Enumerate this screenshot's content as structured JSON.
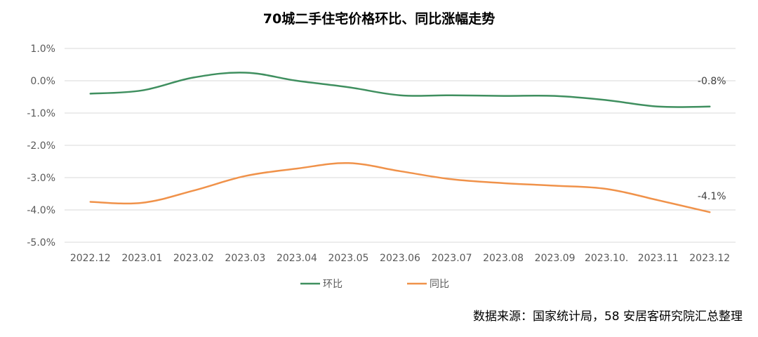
{
  "chart_data": {
    "type": "line",
    "title": "70城二手住宅价格环比、同比涨幅走势",
    "categories": [
      "2022.12",
      "2023.01",
      "2023.02",
      "2023.03",
      "2023.04",
      "2023.05",
      "2023.06",
      "2023.07",
      "2023.08",
      "2023.09",
      "2023.10.",
      "2023.11",
      "2023.12"
    ],
    "ylim": [
      -5.0,
      1.0
    ],
    "yticks": [
      "1.0%",
      "0.0%",
      "-1.0%",
      "-2.0%",
      "-3.0%",
      "-4.0%",
      "-5.0%"
    ],
    "ytick_values": [
      1.0,
      0.0,
      -1.0,
      -2.0,
      -3.0,
      -4.0,
      -5.0
    ],
    "grid": true,
    "legend_position": "bottom",
    "series": [
      {
        "name": "环比",
        "color": "#3f8f5f",
        "values": [
          -0.4,
          -0.3,
          0.1,
          0.25,
          0.0,
          -0.2,
          -0.45,
          -0.45,
          -0.47,
          -0.47,
          -0.6,
          -0.8,
          -0.8
        ],
        "end_label": "-0.8%"
      },
      {
        "name": "同比",
        "color": "#f0924a",
        "values": [
          -3.75,
          -3.78,
          -3.4,
          -2.95,
          -2.72,
          -2.55,
          -2.8,
          -3.05,
          -3.17,
          -3.25,
          -3.35,
          -3.7,
          -4.07
        ],
        "end_label": "-4.1%"
      }
    ],
    "source": "数据来源：国家统计局，58 安居客研究院汇总整理"
  }
}
